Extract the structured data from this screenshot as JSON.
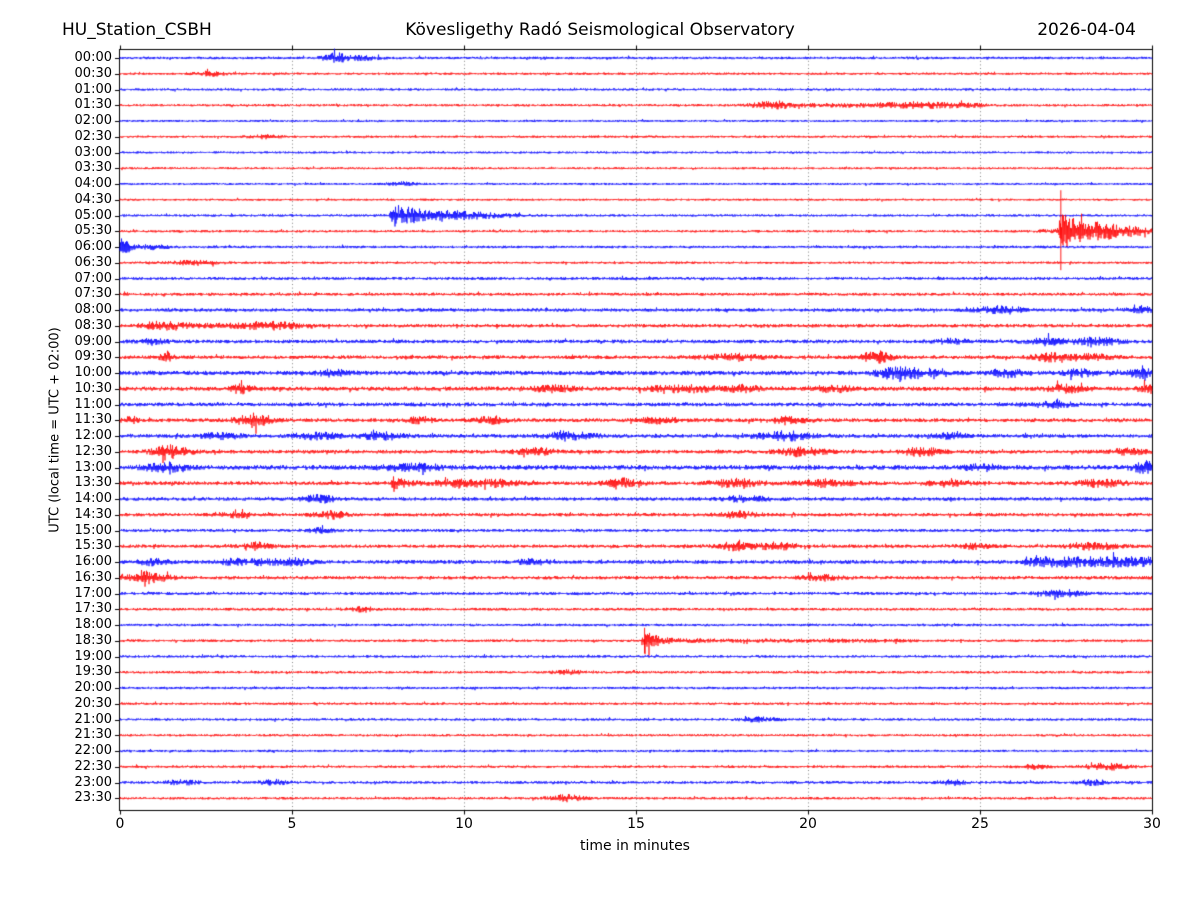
{
  "header": {
    "station": "HU_Station_CSBH",
    "observatory": "Kövesligethy Radó Seismological Observatory",
    "date": "2026-04-04"
  },
  "axes": {
    "x_label": "time in minutes",
    "y_label": "UTC (local time = UTC + 02:00)",
    "x_ticks": [
      0,
      5,
      10,
      15,
      20,
      25,
      30
    ],
    "x_range": [
      0,
      30
    ],
    "grid_minutes": [
      5,
      10,
      15,
      20,
      25
    ],
    "grid_style": "dotted"
  },
  "chart_data": {
    "type": "line",
    "subtype": "helicorder-seismogram",
    "title": "HU_Station_CSBH — 2026-04-04",
    "xlabel": "time in minutes",
    "ylabel": "UTC (local time = UTC + 02:00)",
    "x_range_minutes": [
      0,
      30
    ],
    "row_interval_minutes": 30,
    "rows_count": 48,
    "trace_colors": {
      "on_the_hour": "#0000ff",
      "on_the_half_hour": "#ff0000"
    },
    "legend": "none",
    "grid": "vertical dotted lines every 5 minutes",
    "rows": [
      {
        "time": "00:00",
        "color": "#0000ff",
        "base": 1.3,
        "events": [
          {
            "t": 6.27,
            "a": 4,
            "w": 0.25
          },
          {
            "t": 7.0,
            "a": 1.8,
            "w": 0.4
          }
        ]
      },
      {
        "time": "00:30",
        "color": "#ff0000",
        "base": 1.2,
        "events": [
          {
            "t": 2.6,
            "a": 2,
            "w": 0.3
          }
        ]
      },
      {
        "time": "01:00",
        "color": "#0000ff",
        "base": 1.2,
        "events": []
      },
      {
        "time": "01:30",
        "color": "#ff0000",
        "base": 1.2,
        "events": [
          {
            "t": 18.9,
            "a": 3,
            "w": 0.4
          },
          {
            "t": 18.6,
            "t2": 25,
            "a": 1.1
          },
          {
            "t": 23.3,
            "a": 1.8,
            "w": 0.8
          }
        ]
      },
      {
        "time": "02:00",
        "color": "#0000ff",
        "base": 1.1,
        "events": []
      },
      {
        "time": "02:30",
        "color": "#ff0000",
        "base": 1.2,
        "events": [
          {
            "t": 4.2,
            "a": 1.6,
            "w": 0.3
          }
        ]
      },
      {
        "time": "03:00",
        "color": "#0000ff",
        "base": 1.1,
        "events": []
      },
      {
        "time": "03:30",
        "color": "#ff0000",
        "base": 1.1,
        "events": []
      },
      {
        "time": "04:00",
        "color": "#0000ff",
        "base": 1.1,
        "events": [
          {
            "t": 8.2,
            "a": 1.6,
            "w": 0.3
          }
        ]
      },
      {
        "time": "04:30",
        "color": "#ff0000",
        "base": 1.1,
        "events": []
      },
      {
        "time": "05:00",
        "color": "#0000ff",
        "base": 1.2,
        "events": [
          {
            "t": 7.95,
            "a": 11,
            "w": 0.9,
            "sharp": true
          },
          {
            "t": 9.3,
            "a": 2.2,
            "w": 0.6
          },
          {
            "t": 10.6,
            "a": 1.8,
            "w": 0.8
          }
        ]
      },
      {
        "time": "05:30",
        "color": "#ff0000",
        "base": 1.2,
        "events": [
          {
            "t": 27.35,
            "a": 15,
            "w": 1.3,
            "sharp": true,
            "spike": 41
          },
          {
            "t": 28.4,
            "a": 2.5,
            "w": 0.9
          }
        ]
      },
      {
        "time": "06:00",
        "color": "#0000ff",
        "base": 1.3,
        "events": [
          {
            "t": 0.15,
            "a": 4.5,
            "w": 0.18
          },
          {
            "t": 0.9,
            "a": 2,
            "w": 0.35
          }
        ]
      },
      {
        "time": "06:30",
        "color": "#ff0000",
        "base": 1.2,
        "events": [
          {
            "t": 2.2,
            "a": 2,
            "w": 0.5
          }
        ]
      },
      {
        "time": "07:00",
        "color": "#0000ff",
        "base": 1.5,
        "events": []
      },
      {
        "time": "07:30",
        "color": "#ff0000",
        "base": 1.5,
        "events": []
      },
      {
        "time": "08:00",
        "color": "#0000ff",
        "base": 1.7,
        "events": [
          {
            "t": 25.6,
            "a": 3.2,
            "w": 0.5
          },
          {
            "t": 29.7,
            "a": 2.6,
            "w": 0.3
          }
        ]
      },
      {
        "time": "08:30",
        "color": "#ff0000",
        "base": 1.7,
        "events": [
          {
            "t": 1.2,
            "a": 3.5,
            "w": 0.4
          },
          {
            "t": 2.0,
            "t2": 5.5,
            "a": 1.2
          },
          {
            "t": 4.3,
            "a": 2.2,
            "w": 0.5
          }
        ]
      },
      {
        "time": "09:00",
        "color": "#0000ff",
        "base": 1.8,
        "events": [
          {
            "t": 1.0,
            "a": 2.5,
            "w": 0.3
          },
          {
            "t": 24.2,
            "a": 2.5,
            "w": 0.3
          },
          {
            "t": 26.9,
            "a": 3,
            "w": 0.4
          },
          {
            "t": 28.4,
            "a": 3.5,
            "w": 0.5
          }
        ]
      },
      {
        "time": "09:30",
        "color": "#ff0000",
        "base": 1.8,
        "events": [
          {
            "t": 1.35,
            "a": 5,
            "w": 0.12
          },
          {
            "t": 17.9,
            "a": 2.8,
            "w": 0.6
          },
          {
            "t": 21.95,
            "a": 7,
            "w": 0.3
          },
          {
            "t": 27.0,
            "a": 3.3,
            "w": 0.35
          },
          {
            "t": 28.1,
            "a": 2.6,
            "w": 0.5
          }
        ]
      },
      {
        "time": "10:00",
        "color": "#0000ff",
        "base": 2.2,
        "events": [
          {
            "t": 6.2,
            "a": 2.5,
            "w": 0.3
          },
          {
            "t": 22.5,
            "a": 5,
            "w": 0.35
          },
          {
            "t": 23.3,
            "a": 3.5,
            "w": 0.4
          },
          {
            "t": 25.8,
            "a": 4,
            "w": 0.3
          },
          {
            "t": 27.9,
            "a": 2.8,
            "w": 0.3
          },
          {
            "t": 29.7,
            "a": 4,
            "w": 0.25
          }
        ]
      },
      {
        "time": "10:30",
        "color": "#ff0000",
        "base": 2.1,
        "events": [
          {
            "t": 3.5,
            "a": 4,
            "w": 0.18
          },
          {
            "t": 12.6,
            "a": 2.6,
            "w": 0.5
          },
          {
            "t": 16.4,
            "a": 2.8,
            "w": 0.7
          },
          {
            "t": 18.0,
            "a": 2.8,
            "w": 0.4
          },
          {
            "t": 20.7,
            "a": 2.8,
            "w": 0.4
          },
          {
            "t": 27.5,
            "a": 3,
            "w": 0.4
          },
          {
            "t": 29.9,
            "a": 3.5,
            "w": 0.2
          }
        ]
      },
      {
        "time": "11:00",
        "color": "#0000ff",
        "base": 1.9,
        "events": [
          {
            "t": 27.1,
            "a": 2.6,
            "w": 0.4
          }
        ]
      },
      {
        "time": "11:30",
        "color": "#ff0000",
        "base": 1.9,
        "events": [
          {
            "t": 0.3,
            "a": 3,
            "w": 0.2
          },
          {
            "t": 3.9,
            "a": 6,
            "w": 0.35
          },
          {
            "t": 8.7,
            "a": 3.2,
            "w": 0.25
          },
          {
            "t": 10.8,
            "a": 3.2,
            "w": 0.3
          },
          {
            "t": 15.7,
            "a": 2.5,
            "w": 0.4
          },
          {
            "t": 19.4,
            "a": 2.8,
            "w": 0.4
          }
        ]
      },
      {
        "time": "12:00",
        "color": "#0000ff",
        "base": 1.9,
        "events": [
          {
            "t": 2.9,
            "a": 2.8,
            "w": 0.4
          },
          {
            "t": 5.7,
            "a": 3,
            "w": 0.45
          },
          {
            "t": 7.6,
            "a": 3.2,
            "w": 0.45
          },
          {
            "t": 13.1,
            "a": 3,
            "w": 0.5
          },
          {
            "t": 19.3,
            "a": 4,
            "w": 0.55
          },
          {
            "t": 24.2,
            "a": 2.5,
            "w": 0.3
          }
        ]
      },
      {
        "time": "12:30",
        "color": "#ff0000",
        "base": 1.9,
        "events": [
          {
            "t": 1.5,
            "a": 6,
            "w": 0.35
          },
          {
            "t": 12.1,
            "a": 3,
            "w": 0.4
          },
          {
            "t": 19.8,
            "a": 4,
            "w": 0.45
          },
          {
            "t": 23.3,
            "a": 3.5,
            "w": 0.4
          },
          {
            "t": 29.3,
            "a": 3,
            "w": 0.3
          }
        ]
      },
      {
        "time": "13:00",
        "color": "#0000ff",
        "base": 2.3,
        "events": [
          {
            "t": 1.3,
            "a": 4,
            "w": 0.4
          },
          {
            "t": 8.5,
            "a": 3,
            "w": 0.6
          },
          {
            "t": 25.1,
            "a": 3,
            "w": 0.35
          },
          {
            "t": 29.8,
            "a": 5,
            "w": 0.25
          }
        ]
      },
      {
        "time": "13:30",
        "color": "#ff0000",
        "base": 1.9,
        "events": [
          {
            "t": 7.95,
            "a": 7,
            "w": 0.3,
            "sharp": true
          },
          {
            "t": 9.9,
            "a": 3.5,
            "w": 0.5
          },
          {
            "t": 11.1,
            "a": 3,
            "w": 0.4
          },
          {
            "t": 14.6,
            "a": 4,
            "w": 0.35
          },
          {
            "t": 17.9,
            "a": 3.5,
            "w": 0.5
          },
          {
            "t": 20.5,
            "a": 3,
            "w": 0.6
          },
          {
            "t": 24.1,
            "a": 3.2,
            "w": 0.4
          },
          {
            "t": 28.5,
            "a": 3,
            "w": 0.5
          }
        ]
      },
      {
        "time": "14:00",
        "color": "#0000ff",
        "base": 1.8,
        "events": [
          {
            "t": 5.8,
            "a": 3.8,
            "w": 0.3
          },
          {
            "t": 18.2,
            "a": 3,
            "w": 0.4
          }
        ]
      },
      {
        "time": "14:30",
        "color": "#ff0000",
        "base": 1.7,
        "events": [
          {
            "t": 3.3,
            "a": 2.5,
            "w": 0.35
          },
          {
            "t": 6.15,
            "a": 3.5,
            "w": 0.3
          },
          {
            "t": 18.0,
            "a": 2.8,
            "w": 0.4
          }
        ]
      },
      {
        "time": "15:00",
        "color": "#0000ff",
        "base": 1.5,
        "events": [
          {
            "t": 5.8,
            "a": 1.8,
            "w": 0.3
          }
        ]
      },
      {
        "time": "15:30",
        "color": "#ff0000",
        "base": 1.7,
        "events": [
          {
            "t": 4.0,
            "a": 3,
            "w": 0.3
          },
          {
            "t": 17.9,
            "a": 3.8,
            "w": 0.35
          },
          {
            "t": 19.1,
            "a": 3.3,
            "w": 0.35
          },
          {
            "t": 24.9,
            "a": 2.4,
            "w": 0.3
          },
          {
            "t": 28.3,
            "a": 3,
            "w": 0.5
          }
        ]
      },
      {
        "time": "16:00",
        "color": "#0000ff",
        "base": 1.9,
        "events": [
          {
            "t": 0.95,
            "a": 2.5,
            "w": 0.3
          },
          {
            "t": 3.3,
            "a": 2.5,
            "w": 0.3
          },
          {
            "t": 4.2,
            "a": 2.8,
            "w": 0.3
          },
          {
            "t": 5.1,
            "a": 3,
            "w": 0.3
          },
          {
            "t": 12.0,
            "a": 2.4,
            "w": 0.3
          },
          {
            "t": 26.4,
            "t2": 30,
            "a": 3.8
          }
        ]
      },
      {
        "time": "16:30",
        "color": "#ff0000",
        "base": 1.7,
        "events": [
          {
            "t": 0.85,
            "a": 4.5,
            "w": 0.25
          },
          {
            "t": 0.0,
            "t2": 1.5,
            "a": 1.5
          },
          {
            "t": 20.4,
            "a": 2.4,
            "w": 0.4
          }
        ]
      },
      {
        "time": "17:00",
        "color": "#0000ff",
        "base": 1.5,
        "events": [
          {
            "t": 27.4,
            "a": 3.6,
            "w": 0.45
          }
        ]
      },
      {
        "time": "17:30",
        "color": "#ff0000",
        "base": 1.4,
        "events": [
          {
            "t": 7.0,
            "a": 2,
            "w": 0.3
          }
        ]
      },
      {
        "time": "18:00",
        "color": "#0000ff",
        "base": 1.3,
        "events": []
      },
      {
        "time": "18:30",
        "color": "#ff0000",
        "base": 1.3,
        "events": [
          {
            "t": 15.25,
            "a": 9,
            "w": 0.5,
            "sharp": true,
            "spike": 13
          },
          {
            "t": 16.5,
            "t2": 23,
            "a": 0.8
          }
        ]
      },
      {
        "time": "19:00",
        "color": "#0000ff",
        "base": 1.3,
        "events": []
      },
      {
        "time": "19:30",
        "color": "#ff0000",
        "base": 1.3,
        "events": [
          {
            "t": 13.0,
            "a": 1.8,
            "w": 0.3
          }
        ]
      },
      {
        "time": "20:00",
        "color": "#0000ff",
        "base": 1.3,
        "events": []
      },
      {
        "time": "20:30",
        "color": "#ff0000",
        "base": 1.3,
        "events": []
      },
      {
        "time": "21:00",
        "color": "#0000ff",
        "base": 1.3,
        "events": [
          {
            "t": 18.6,
            "a": 1.8,
            "w": 0.4
          }
        ]
      },
      {
        "time": "21:30",
        "color": "#ff0000",
        "base": 1.2,
        "events": []
      },
      {
        "time": "22:00",
        "color": "#0000ff",
        "base": 1.2,
        "events": []
      },
      {
        "time": "22:30",
        "color": "#ff0000",
        "base": 1.3,
        "events": [
          {
            "t": 26.6,
            "a": 2,
            "w": 0.3
          },
          {
            "t": 28.65,
            "a": 3,
            "w": 0.45
          }
        ]
      },
      {
        "time": "23:00",
        "color": "#0000ff",
        "base": 1.4,
        "events": [
          {
            "t": 1.8,
            "a": 2.4,
            "w": 0.3
          },
          {
            "t": 4.5,
            "a": 2.4,
            "w": 0.3
          },
          {
            "t": 24.2,
            "a": 2.2,
            "w": 0.3
          },
          {
            "t": 28.3,
            "a": 2.4,
            "w": 0.3
          }
        ]
      },
      {
        "time": "23:30",
        "color": "#ff0000",
        "base": 1.3,
        "events": [
          {
            "t": 13.0,
            "a": 3,
            "w": 0.35
          }
        ]
      }
    ]
  }
}
